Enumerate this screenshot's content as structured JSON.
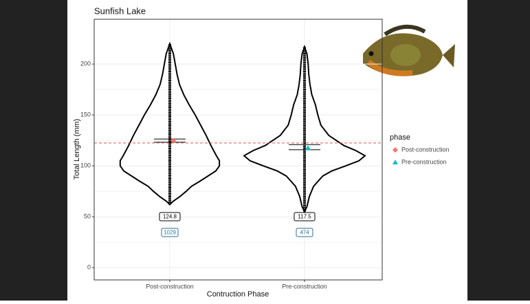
{
  "chart_data": {
    "type": "violin",
    "title": "Sunfish Lake",
    "x_label": "Contruction Phase",
    "y_label": "Total Length (mm)",
    "categories": [
      "Post-construction",
      "Pre-construction"
    ],
    "legend_title": "phase",
    "series": [
      {
        "name": "Post-construction",
        "color": "#f8766d",
        "marker": "diamond",
        "mean": 124.8,
        "ci": [
          123.3,
          126.4
        ],
        "count": 1029,
        "range": [
          62,
          220
        ],
        "density_y": [
          62,
          65,
          70,
          75,
          80,
          85,
          90,
          95,
          100,
          105,
          110,
          120,
          130,
          140,
          150,
          160,
          170,
          180,
          190,
          200,
          210,
          220
        ],
        "density": [
          0,
          0.05,
          0.17,
          0.27,
          0.36,
          0.5,
          0.63,
          0.76,
          0.82,
          0.82,
          0.77,
          0.68,
          0.6,
          0.51,
          0.42,
          0.32,
          0.23,
          0.16,
          0.12,
          0.09,
          0.06,
          0
        ]
      },
      {
        "name": "Pre-construction",
        "color": "#00bfc4",
        "marker": "triangle",
        "mean": 117.5,
        "ci": [
          115.8,
          120.9
        ],
        "count": 474,
        "range": [
          55,
          217
        ],
        "density_y": [
          55,
          60,
          70,
          80,
          90,
          95,
          100,
          105,
          110,
          115,
          120,
          130,
          140,
          150,
          160,
          170,
          180,
          190,
          200,
          210,
          217
        ],
        "density": [
          0,
          0.04,
          0.08,
          0.15,
          0.3,
          0.45,
          0.68,
          0.9,
          1.0,
          0.85,
          0.65,
          0.4,
          0.27,
          0.22,
          0.18,
          0.12,
          0.09,
          0.07,
          0.06,
          0.04,
          0
        ]
      }
    ],
    "reference_line": 122.5,
    "reference_color": "#e05050",
    "ylim": [
      -12,
      244
    ],
    "yticks": [
      0,
      50,
      100,
      150,
      200
    ],
    "grid": true
  }
}
